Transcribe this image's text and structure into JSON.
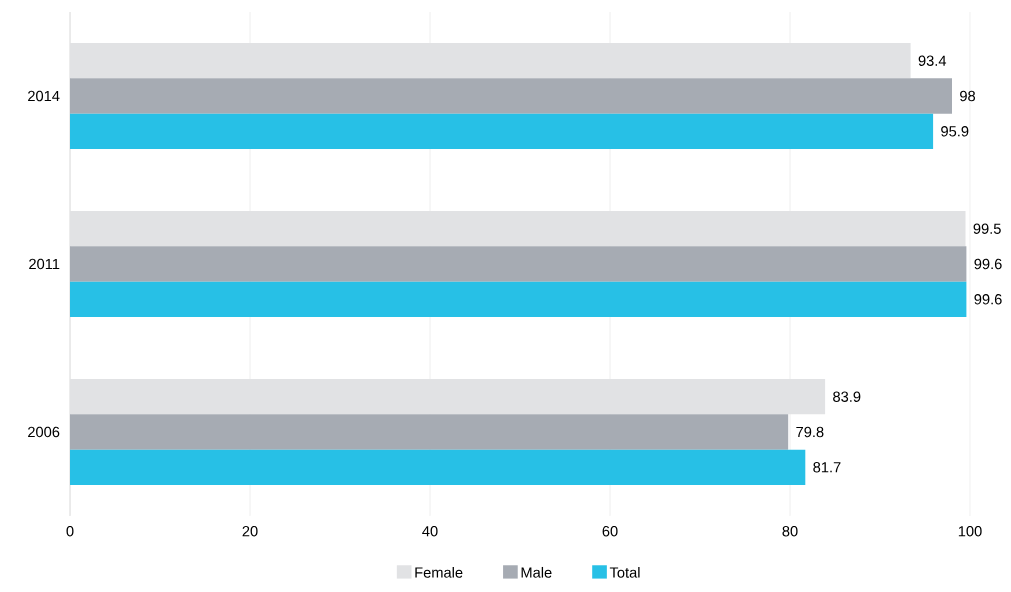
{
  "chart_data": {
    "type": "bar",
    "orientation": "horizontal",
    "categories": [
      "2014",
      "2011",
      "2006"
    ],
    "series": [
      {
        "name": "Female",
        "color": "#e1e2e4",
        "values": [
          93.4,
          99.5,
          83.9
        ]
      },
      {
        "name": "Male",
        "color": "#a6abb3",
        "values": [
          98,
          99.6,
          79.8
        ]
      },
      {
        "name": "Total",
        "color": "#27c0e6",
        "values": [
          95.9,
          99.6,
          81.7
        ]
      }
    ],
    "xlim": [
      0,
      100
    ],
    "xticks": [
      0,
      20,
      40,
      60,
      80,
      100
    ],
    "grid": "x",
    "legend": "bottom",
    "data_labels": true
  }
}
